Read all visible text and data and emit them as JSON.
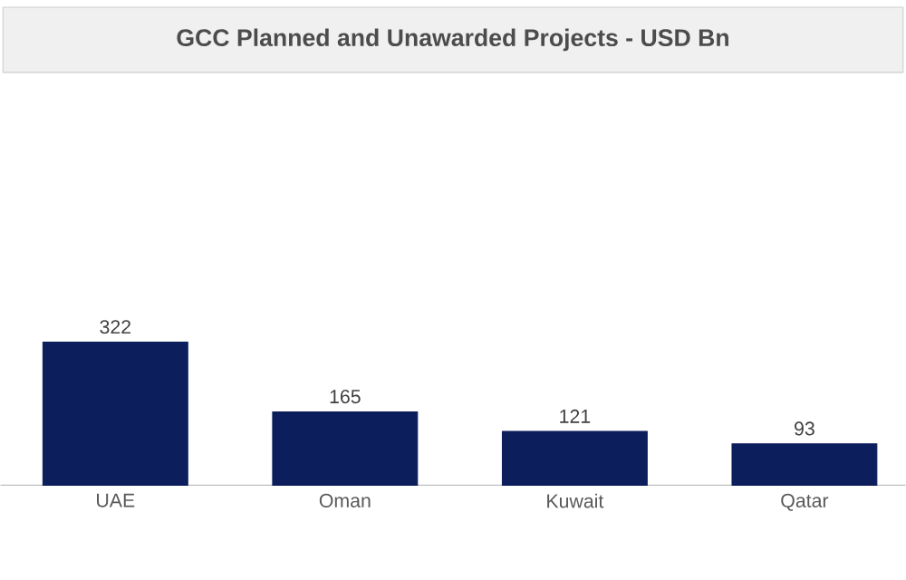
{
  "chart_data": {
    "type": "bar",
    "title": "GCC Planned and Unawarded Projects - USD Bn",
    "categories": [
      "UAE",
      "Oman",
      "Kuwait",
      "Qatar"
    ],
    "values": [
      322,
      165,
      121,
      93
    ],
    "color": "#0c1e5b",
    "data_labels": true
  }
}
